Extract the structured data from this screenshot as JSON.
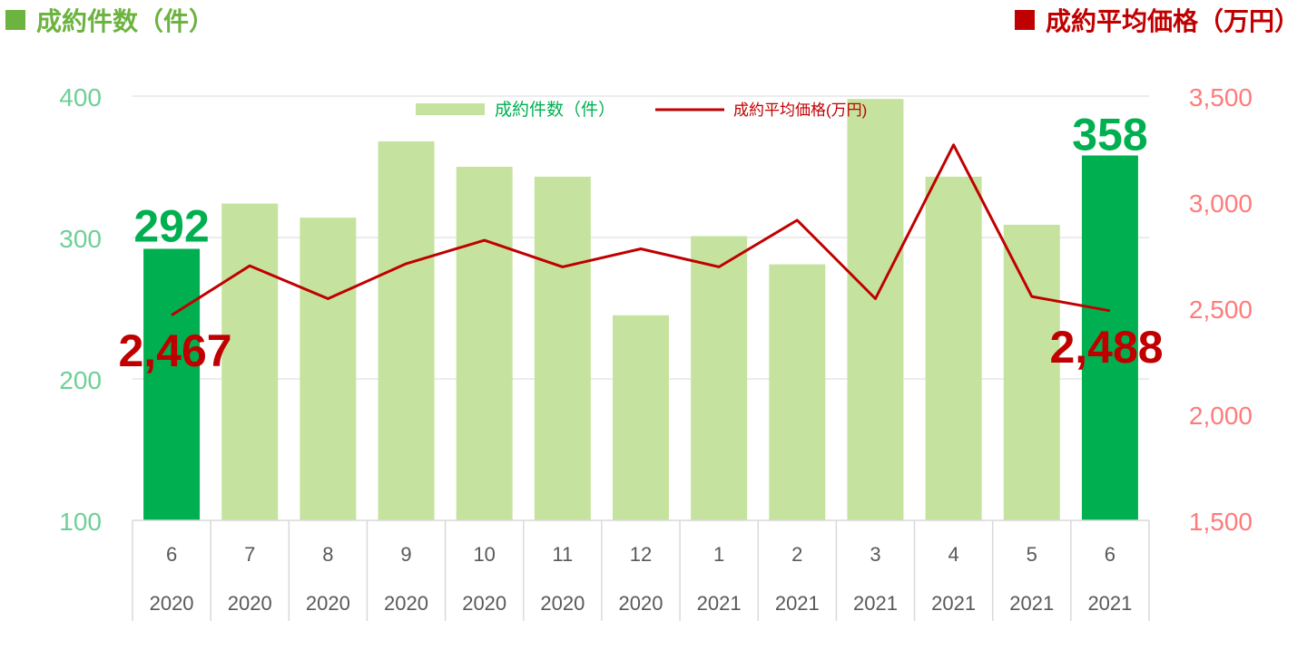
{
  "header": {
    "left_title": "成約件数（件）",
    "right_title": "成約平均価格（万円）"
  },
  "colors": {
    "bar_light": "#c5e39e",
    "bar_highlight": "#00b050",
    "line": "#c00000",
    "left_header": "#6cb33f",
    "right_header": "#c00000",
    "left_axis_text": "#6fcf97",
    "right_axis_text": "#ff7b7b",
    "category_text": "#595959",
    "grid": "#d9d9d9",
    "highlight_label_bar": "#00b050",
    "highlight_label_line": "#c00000"
  },
  "chart_data": {
    "type": "bar",
    "categories": [
      "6",
      "7",
      "8",
      "9",
      "10",
      "11",
      "12",
      "1",
      "2",
      "3",
      "4",
      "5",
      "6"
    ],
    "category_years": [
      "2020",
      "2020",
      "2020",
      "2020",
      "2020",
      "2020",
      "2020",
      "2021",
      "2021",
      "2021",
      "2021",
      "2021",
      "2021"
    ],
    "series": [
      {
        "name": "成約件数（件）",
        "type": "bar",
        "axis": "left",
        "values": [
          292,
          324,
          314,
          368,
          350,
          343,
          245,
          301,
          281,
          398,
          343,
          309,
          358
        ],
        "highlight_indices": [
          0,
          12
        ]
      },
      {
        "name": "成約平均価格(万円)",
        "type": "line",
        "axis": "right",
        "values": [
          2467,
          2700,
          2545,
          2710,
          2820,
          2695,
          2780,
          2695,
          2915,
          2545,
          3270,
          2555,
          2488
        ]
      }
    ],
    "left_axis": {
      "min": 100,
      "max": 400,
      "ticks": [
        "100",
        "200",
        "300",
        "400"
      ]
    },
    "right_axis": {
      "min": 1500,
      "max": 3500,
      "ticks": [
        "1,500",
        "2,000",
        "2,500",
        "3,000",
        "3,500"
      ]
    },
    "annotations": {
      "bar_first": "292",
      "bar_last": "358",
      "line_first": "2,467",
      "line_last": "2,488"
    },
    "legend_position": "top-center",
    "grid": true
  }
}
